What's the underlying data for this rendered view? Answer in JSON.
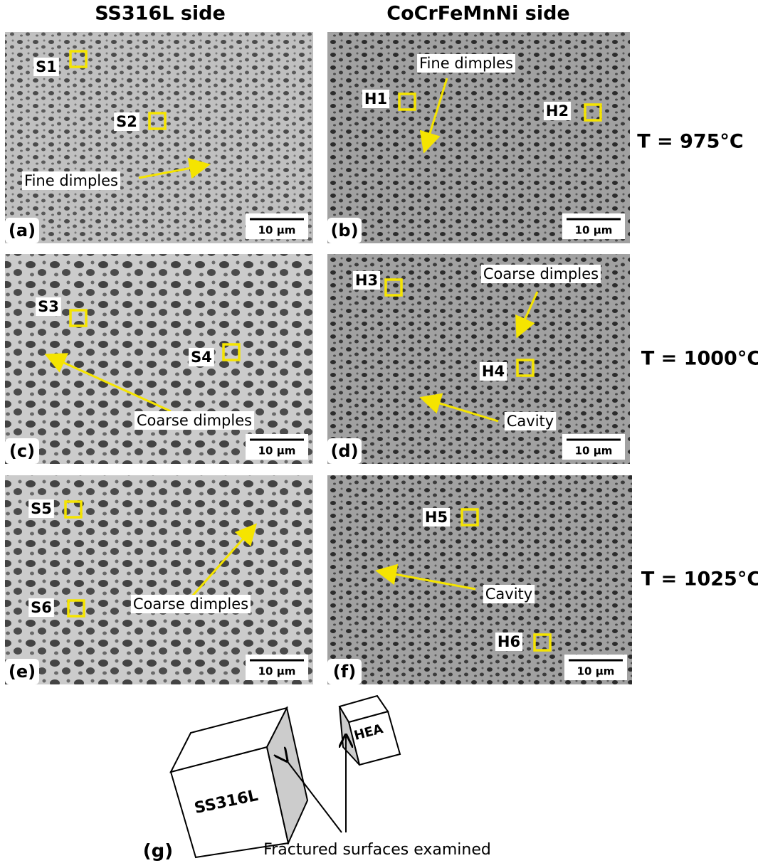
{
  "column_headers": [
    "SS316L side",
    "CoCrFeMnNi side"
  ],
  "row_labels": [
    "T = 975°C",
    "T = 1000°C",
    "T = 1025°C"
  ],
  "panels": [
    {
      "label": "(a)",
      "scale_bar": "10 µm",
      "markers": [
        "S1",
        "S2"
      ],
      "annotations": [
        "Fine dimples"
      ]
    },
    {
      "label": "(b)",
      "scale_bar": "10 µm",
      "markers": [
        "H1",
        "H2"
      ],
      "annotations": [
        "Fine dimples"
      ]
    },
    {
      "label": "(c)",
      "scale_bar": "10 µm",
      "markers": [
        "S3",
        "S4"
      ],
      "annotations": [
        "Coarse dimples"
      ]
    },
    {
      "label": "(d)",
      "scale_bar": "10 µm",
      "markers": [
        "H3",
        "H4"
      ],
      "annotations": [
        "Coarse dimples",
        "Cavity"
      ]
    },
    {
      "label": "(e)",
      "scale_bar": "10 µm",
      "markers": [
        "S5",
        "S6"
      ],
      "annotations": [
        "Coarse dimples"
      ]
    },
    {
      "label": "(f)",
      "scale_bar": "10 µm",
      "markers": [
        "H5",
        "H6"
      ],
      "annotations": [
        "Cavity"
      ]
    }
  ],
  "schematic": {
    "label": "(g)",
    "blocks": [
      "SS316L",
      "HEA"
    ],
    "caption": "Fractured surfaces examined"
  }
}
